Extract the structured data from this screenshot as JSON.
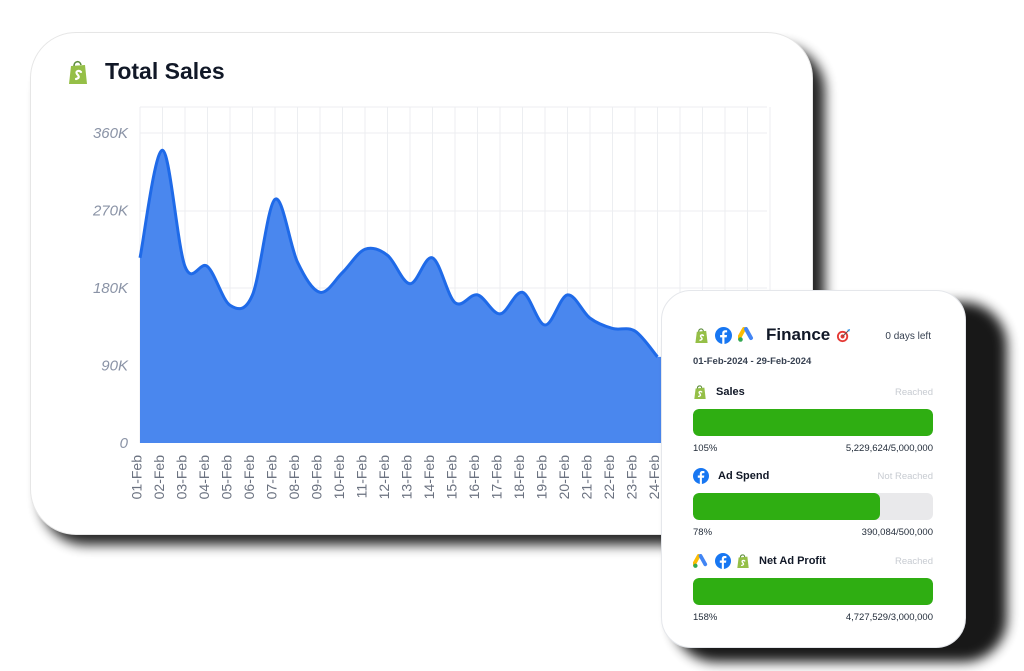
{
  "main_card": {
    "title": "Total Sales",
    "icon": "shopify-icon"
  },
  "chart_data": {
    "type": "area",
    "title": "Total Sales",
    "xlabel": "",
    "ylabel": "",
    "categories": [
      "01-Feb",
      "02-Feb",
      "03-Feb",
      "04-Feb",
      "05-Feb",
      "06-Feb",
      "07-Feb",
      "08-Feb",
      "09-Feb",
      "10-Feb",
      "11-Feb",
      "12-Feb",
      "13-Feb",
      "14-Feb",
      "15-Feb",
      "16-Feb",
      "17-Feb",
      "18-Feb",
      "19-Feb",
      "20-Feb",
      "21-Feb",
      "22-Feb",
      "23-Feb",
      "24-Feb"
    ],
    "values": [
      215000,
      340000,
      205000,
      205000,
      160000,
      172000,
      283000,
      210000,
      175000,
      198000,
      225000,
      218000,
      185000,
      215000,
      163000,
      172000,
      150000,
      175000,
      137000,
      172000,
      145000,
      133000,
      130000,
      100000
    ],
    "yticks": [
      0,
      90000,
      180000,
      270000,
      360000
    ],
    "ytick_labels": [
      "0",
      "90K",
      "180K",
      "270K",
      "360K"
    ],
    "ylim": [
      0,
      360000
    ],
    "grid": true,
    "fill_color": "#4a87ee",
    "line_color": "#1f6ae8"
  },
  "finance": {
    "title": "Finance",
    "days_left": "0 days left",
    "date_range": "01-Feb-2024 - 29-Feb-2024",
    "header_icons": [
      "shopify-icon",
      "facebook-icon",
      "google-ads-icon"
    ],
    "goal_icon": "target-icon",
    "metrics": [
      {
        "label": "Sales",
        "status": "Reached",
        "percent_text": "105%",
        "progress": 1.0,
        "value_text": "5,229,624/5,000,000",
        "icons": [
          "shopify-icon"
        ]
      },
      {
        "label": "Ad Spend",
        "status": "Not Reached",
        "percent_text": "78%",
        "progress": 0.78,
        "value_text": "390,084/500,000",
        "icons": [
          "facebook-icon"
        ]
      },
      {
        "label": "Net Ad Profit",
        "status": "Reached",
        "percent_text": "158%",
        "progress": 1.0,
        "value_text": "4,727,529/3,000,000",
        "icons": [
          "google-ads-icon",
          "facebook-icon",
          "shopify-icon"
        ]
      }
    ]
  },
  "colors": {
    "progress_fill": "#2fae12",
    "progress_track": "#e9e9eb",
    "shopify_green": "#95bf47",
    "facebook_blue": "#1877f2"
  }
}
